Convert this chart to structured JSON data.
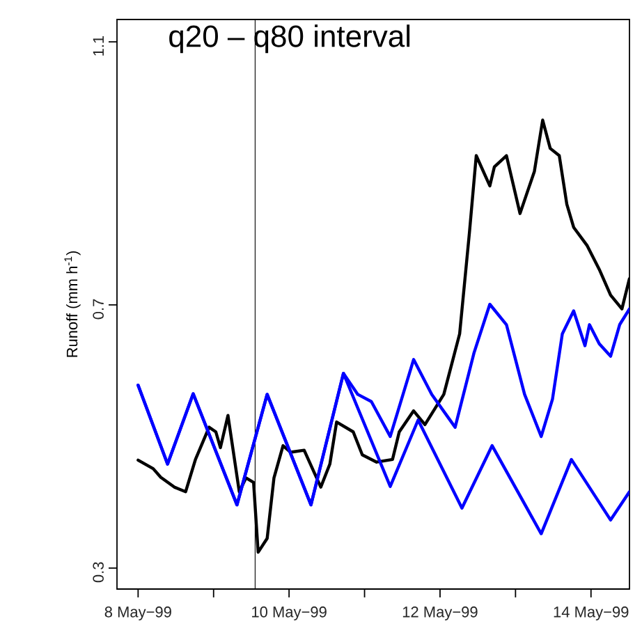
{
  "chart_data": {
    "type": "line",
    "title": "q20 – q80 interval",
    "ylabel": "Runoff (mm h$^{-1}$)",
    "xlim": [
      "1999-05-07T17:17",
      "1999-05-14T12:14"
    ],
    "ylim": [
      0.268,
      1.134
    ],
    "xticks": [
      {
        "value": "1999-05-08",
        "label": "8 May−99"
      },
      {
        "value": "1999-05-09",
        "label": null
      },
      {
        "value": "1999-05-10",
        "label": "10 May−99"
      },
      {
        "value": "1999-05-11",
        "label": null
      },
      {
        "value": "1999-05-12",
        "label": "12 May−99"
      },
      {
        "value": "1999-05-13",
        "label": null
      },
      {
        "value": "1999-05-14",
        "label": "14 May−99"
      }
    ],
    "yticks": [
      0.3,
      0.7,
      1.1
    ],
    "marker": "none",
    "line_style": "solid",
    "ref_lines": [
      {
        "axis": "x",
        "value": "1999-05-09T13:12",
        "color": "#000000"
      }
    ],
    "series": [
      {
        "color": "#000000",
        "x": [
          "1999-05-08T00:00",
          "1999-05-08T04:48",
          "1999-05-08T07:12",
          "1999-05-08T11:31",
          "1999-05-08T15:07",
          "1999-05-08T18:14",
          "1999-05-08T22:34",
          "1999-05-09T00:43",
          "1999-05-09T02:10",
          "1999-05-09T04:34",
          "1999-05-09T06:00",
          "1999-05-09T08:10",
          "1999-05-09T10:19",
          "1999-05-09T12:43",
          "1999-05-09T14:10",
          "1999-05-09T17:02",
          "1999-05-09T19:12",
          "1999-05-09T22:05",
          "1999-05-10T00:29",
          "1999-05-10T04:48",
          "1999-05-10T10:05",
          "1999-05-10T12:58",
          "1999-05-10T15:07",
          "1999-05-10T20:24",
          "1999-05-10T23:17",
          "1999-05-11T03:50",
          "1999-05-11T08:53",
          "1999-05-11T11:02",
          "1999-05-11T15:36",
          "1999-05-11T19:12",
          "1999-05-12T01:12",
          "1999-05-12T06:14",
          "1999-05-12T09:22",
          "1999-05-12T11:31",
          "1999-05-12T15:50",
          "1999-05-12T17:17",
          "1999-05-12T21:07",
          "1999-05-13T01:26",
          "1999-05-13T06:00",
          "1999-05-13T08:38",
          "1999-05-13T11:02",
          "1999-05-13T13:55",
          "1999-05-13T16:19",
          "1999-05-13T18:29",
          "1999-05-13T22:48",
          "1999-05-14T02:38",
          "1999-05-14T06:14",
          "1999-05-14T09:50",
          "1999-05-14T12:14"
        ],
        "values": [
          0.464,
          0.451,
          0.438,
          0.423,
          0.416,
          0.465,
          0.514,
          0.507,
          0.483,
          0.532,
          0.486,
          0.416,
          0.437,
          0.43,
          0.324,
          0.345,
          0.437,
          0.486,
          0.476,
          0.479,
          0.423,
          0.458,
          0.522,
          0.507,
          0.472,
          0.461,
          0.465,
          0.507,
          0.539,
          0.518,
          0.564,
          0.656,
          0.811,
          0.927,
          0.881,
          0.91,
          0.927,
          0.839,
          0.903,
          0.981,
          0.938,
          0.927,
          0.853,
          0.818,
          0.79,
          0.754,
          0.715,
          0.694,
          0.74
        ]
      },
      {
        "color": "#0000ff",
        "x": [
          "1999-05-08T00:00",
          "1999-05-08T09:22",
          "1999-05-08T17:31",
          "1999-05-09T07:26",
          "1999-05-09T17:02",
          "1999-05-10T06:58",
          "1999-05-10T17:17",
          "1999-05-10T21:50",
          "1999-05-11T02:10",
          "1999-05-11T08:10",
          "1999-05-11T15:36",
          "1999-05-11T21:22",
          "1999-05-12T04:48",
          "1999-05-12T10:48",
          "1999-05-12T15:50",
          "1999-05-12T21:07",
          "1999-05-13T02:53",
          "1999-05-13T08:10",
          "1999-05-13T11:46",
          "1999-05-13T14:53",
          "1999-05-13T18:29",
          "1999-05-13T22:05",
          "1999-05-13T23:31",
          "1999-05-14T02:38",
          "1999-05-14T06:14",
          "1999-05-14T09:07",
          "1999-05-14T12:14"
        ],
        "values": [
          0.578,
          0.458,
          0.565,
          0.396,
          0.564,
          0.396,
          0.596,
          0.564,
          0.553,
          0.5,
          0.617,
          0.564,
          0.514,
          0.627,
          0.701,
          0.67,
          0.564,
          0.5,
          0.557,
          0.656,
          0.691,
          0.638,
          0.67,
          0.641,
          0.622,
          0.67,
          0.694
        ]
      },
      {
        "color": "#0000ff",
        "x": [
          "1999-05-08T00:00",
          "1999-05-08T09:22",
          "1999-05-08T17:31",
          "1999-05-09T07:26",
          "1999-05-09T17:02",
          "1999-05-10T06:58",
          "1999-05-10T17:17",
          "1999-05-11T08:10",
          "1999-05-11T17:02",
          "1999-05-12T06:58",
          "1999-05-12T16:34",
          "1999-05-13T08:10",
          "1999-05-13T17:46",
          "1999-05-14T06:14",
          "1999-05-14T12:14"
        ],
        "values": [
          0.578,
          0.458,
          0.565,
          0.396,
          0.564,
          0.396,
          0.596,
          0.424,
          0.525,
          0.391,
          0.486,
          0.352,
          0.465,
          0.373,
          0.416
        ]
      }
    ]
  }
}
